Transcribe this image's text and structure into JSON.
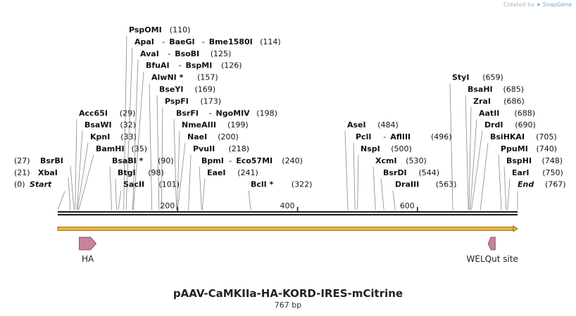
{
  "title": "pAAV-CaMKIIa-HA-KORD-IRES-mCitrine",
  "length_label": "767 bp",
  "total_bp": 767,
  "credit": {
    "prefix": "Created by",
    "brand": "SnapGene"
  },
  "ticks": [
    200,
    400,
    600
  ],
  "start": {
    "name": "Start",
    "pos": 0,
    "label": "(0)"
  },
  "end": {
    "name": "End",
    "pos": 767,
    "label": "(767)"
  },
  "orf": {
    "from": 0,
    "to": 767,
    "color": "#f2b233"
  },
  "features": [
    {
      "name": "HA",
      "pos": 50,
      "direction": "forward",
      "color": "#c9829e"
    },
    {
      "name": "WELQut site",
      "pos": 725,
      "direction": "reverse",
      "color": "#c9829e"
    }
  ],
  "sites": [
    {
      "row": 0,
      "pos": 110,
      "parts": [
        "PspOMI"
      ],
      "label": "(110)"
    },
    {
      "row": 1,
      "pos": 114,
      "parts": [
        "ApaI",
        "BaeGI",
        "Bme1580I"
      ],
      "label": "(114)"
    },
    {
      "row": 2,
      "pos": 125,
      "parts": [
        "AvaI",
        "BsoBI"
      ],
      "label": "(125)"
    },
    {
      "row": 3,
      "pos": 126,
      "parts": [
        "BfuAI",
        "BspMI"
      ],
      "label": "(126)"
    },
    {
      "row": 4,
      "pos": 157,
      "parts": [
        "AlwNI *"
      ],
      "label": "(157)"
    },
    {
      "row": 5,
      "pos": 169,
      "parts": [
        "BseYI"
      ],
      "label": "(169)"
    },
    {
      "row": 6,
      "pos": 173,
      "parts": [
        "PspFI"
      ],
      "label": "(173)"
    },
    {
      "row": 7,
      "pos": 198,
      "parts": [
        "BsrFI",
        "NgoMIV"
      ],
      "label": "(198)"
    },
    {
      "row": 8,
      "pos": 199,
      "parts": [
        "NmeAIII"
      ],
      "label": "(199)"
    },
    {
      "row": 9,
      "pos": 200,
      "parts": [
        "NaeI"
      ],
      "label": "(200)"
    },
    {
      "row": 10,
      "pos": 218,
      "parts": [
        "PvuII"
      ],
      "label": "(218)"
    },
    {
      "row": 11,
      "pos": 240,
      "parts": [
        "BpmI",
        "Eco57MI"
      ],
      "label": "(240)"
    },
    {
      "row": 12,
      "pos": 241,
      "parts": [
        "EaeI"
      ],
      "label": "(241)"
    },
    {
      "row": 13,
      "pos": 322,
      "parts": [
        "BclI *"
      ],
      "label": "(322)"
    },
    {
      "row": 7,
      "pos": 29,
      "parts": [
        "Acc65I"
      ],
      "label": "(29)"
    },
    {
      "row": 8,
      "pos": 32,
      "parts": [
        "BsaWI"
      ],
      "label": "(32)"
    },
    {
      "row": 9,
      "pos": 33,
      "parts": [
        "KpnI"
      ],
      "label": "(33)"
    },
    {
      "row": 10,
      "pos": 35,
      "parts": [
        "BamHI"
      ],
      "label": "(35)"
    },
    {
      "row": 11,
      "pos": 90,
      "parts": [
        "BsaBI *"
      ],
      "label": "(90)"
    },
    {
      "row": 12,
      "pos": 98,
      "parts": [
        "BtgI"
      ],
      "label": "(98)"
    },
    {
      "row": 13,
      "pos": 101,
      "parts": [
        "SacII"
      ],
      "label": "(101)"
    },
    {
      "row": 11,
      "pos": 27,
      "parts": [
        "BsrBI"
      ],
      "label": "(27)"
    },
    {
      "row": 12,
      "pos": 21,
      "parts": [
        "XbaI"
      ],
      "label": "(21)"
    },
    {
      "row": 8,
      "pos": 484,
      "parts": [
        "AseI"
      ],
      "label": "(484)"
    },
    {
      "row": 9,
      "pos": 496,
      "parts": [
        "PclI",
        "AflIII"
      ],
      "label": "(496)"
    },
    {
      "row": 10,
      "pos": 500,
      "parts": [
        "NspI"
      ],
      "label": "(500)"
    },
    {
      "row": 11,
      "pos": 530,
      "parts": [
        "XcmI"
      ],
      "label": "(530)"
    },
    {
      "row": 12,
      "pos": 544,
      "parts": [
        "BsrDI"
      ],
      "label": "(544)"
    },
    {
      "row": 13,
      "pos": 563,
      "parts": [
        "DraIII"
      ],
      "label": "(563)"
    },
    {
      "row": 4,
      "pos": 659,
      "parts": [
        "StyI"
      ],
      "label": "(659)"
    },
    {
      "row": 5,
      "pos": 685,
      "parts": [
        "BsaHI"
      ],
      "label": "(685)"
    },
    {
      "row": 6,
      "pos": 686,
      "parts": [
        "ZraI"
      ],
      "label": "(686)"
    },
    {
      "row": 7,
      "pos": 688,
      "parts": [
        "AatII"
      ],
      "label": "(688)"
    },
    {
      "row": 8,
      "pos": 690,
      "parts": [
        "DrdI"
      ],
      "label": "(690)"
    },
    {
      "row": 9,
      "pos": 705,
      "parts": [
        "BsiHKAI"
      ],
      "label": "(705)"
    },
    {
      "row": 10,
      "pos": 740,
      "parts": [
        "PpuMI"
      ],
      "label": "(740)"
    },
    {
      "row": 11,
      "pos": 748,
      "parts": [
        "BspHI"
      ],
      "label": "(748)"
    },
    {
      "row": 12,
      "pos": 750,
      "parts": [
        "EarI"
      ],
      "label": "(750)"
    }
  ]
}
